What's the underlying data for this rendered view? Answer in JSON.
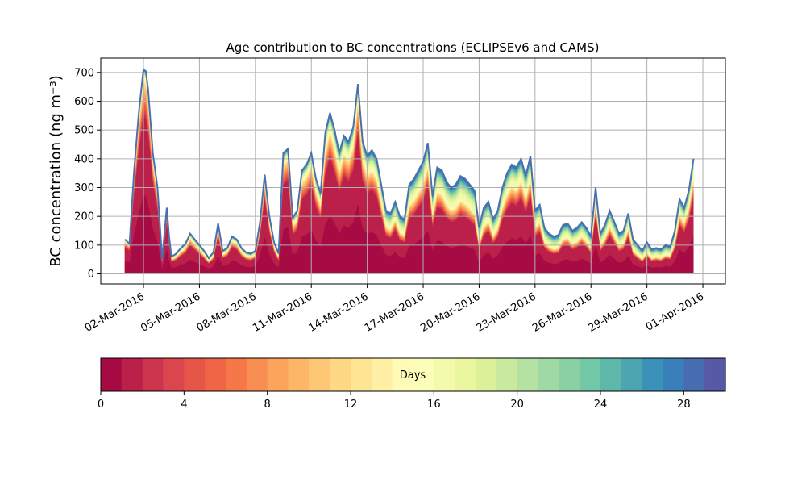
{
  "chart_data": {
    "type": "area",
    "title": "Age contribution to BC concentrations (ECLIPSEv6 and CAMS)",
    "ylabel": "BC concentration (ng m⁻³)",
    "xlabel": "",
    "ylim": [
      -35,
      750
    ],
    "x_range": [
      "2016-02-28T17:00",
      "2016-04-02T05:00"
    ],
    "y_ticks": [
      0,
      100,
      200,
      300,
      400,
      500,
      600,
      700
    ],
    "x_ticks": [
      "02-Mar-2016",
      "05-Mar-2016",
      "08-Mar-2016",
      "11-Mar-2016",
      "14-Mar-2016",
      "17-Mar-2016",
      "20-Mar-2016",
      "23-Mar-2016",
      "26-Mar-2016",
      "29-Mar-2016",
      "01-Apr-2016"
    ],
    "x_tick_dates": [
      "2016-03-02",
      "2016-03-05",
      "2016-03-08",
      "2016-03-11",
      "2016-03-14",
      "2016-03-17",
      "2016-03-20",
      "2016-03-23",
      "2016-03-26",
      "2016-03-29",
      "2016-04-01"
    ],
    "grid": true,
    "colormap": "Spectral",
    "colors": {
      "spectral": [
        "#9e0142",
        "#d53e4f",
        "#f46d43",
        "#fdae61",
        "#fee08b",
        "#ffffbf",
        "#e6f598",
        "#abdda4",
        "#66c2a5",
        "#3288bd",
        "#5e4fa2"
      ],
      "total_line": "#4c6fb0",
      "grid": "#b0b0b0"
    },
    "series": [
      {
        "dates": [
          "2016-03-01T00:00",
          "2016-03-01T06:00",
          "2016-03-01T12:00",
          "2016-03-01T18:00",
          "2016-03-02T00:00",
          "2016-03-02T03:00",
          "2016-03-02T06:00",
          "2016-03-02T12:00",
          "2016-03-02T18:00",
          "2016-03-03T00:00",
          "2016-03-03T06:00",
          "2016-03-03T09:00",
          "2016-03-03T12:00",
          "2016-03-03T18:00",
          "2016-03-04T00:00",
          "2016-03-04T06:00",
          "2016-03-04T12:00",
          "2016-03-04T18:00",
          "2016-03-05T00:00",
          "2016-03-05T06:00",
          "2016-03-05T12:00",
          "2016-03-05T18:00",
          "2016-03-06T00:00",
          "2016-03-06T06:00",
          "2016-03-06T12:00",
          "2016-03-06T18:00",
          "2016-03-07T00:00",
          "2016-03-07T06:00",
          "2016-03-07T12:00",
          "2016-03-07T18:00",
          "2016-03-08T00:00",
          "2016-03-08T06:00",
          "2016-03-08T12:00",
          "2016-03-08T18:00",
          "2016-03-09T00:00",
          "2016-03-09T06:00",
          "2016-03-09T12:00",
          "2016-03-09T18:00",
          "2016-03-10T00:00",
          "2016-03-10T06:00",
          "2016-03-10T12:00",
          "2016-03-10T18:00",
          "2016-03-11T00:00",
          "2016-03-11T06:00",
          "2016-03-11T12:00",
          "2016-03-11T18:00",
          "2016-03-12T00:00",
          "2016-03-12T06:00",
          "2016-03-12T12:00",
          "2016-03-12T18:00",
          "2016-03-13T00:00",
          "2016-03-13T06:00",
          "2016-03-13T12:00",
          "2016-03-13T18:00",
          "2016-03-14T00:00",
          "2016-03-14T06:00",
          "2016-03-14T12:00",
          "2016-03-14T18:00",
          "2016-03-15T00:00",
          "2016-03-15T06:00",
          "2016-03-15T12:00",
          "2016-03-15T18:00",
          "2016-03-16T00:00",
          "2016-03-16T06:00",
          "2016-03-16T12:00",
          "2016-03-16T18:00",
          "2016-03-17T00:00",
          "2016-03-17T06:00",
          "2016-03-17T12:00",
          "2016-03-17T18:00",
          "2016-03-18T00:00",
          "2016-03-18T06:00",
          "2016-03-18T12:00",
          "2016-03-18T18:00",
          "2016-03-19T00:00",
          "2016-03-19T06:00",
          "2016-03-19T12:00",
          "2016-03-19T18:00",
          "2016-03-20T00:00",
          "2016-03-20T06:00",
          "2016-03-20T12:00",
          "2016-03-20T18:00",
          "2016-03-21T00:00",
          "2016-03-21T06:00",
          "2016-03-21T12:00",
          "2016-03-21T18:00",
          "2016-03-22T00:00",
          "2016-03-22T06:00",
          "2016-03-22T12:00",
          "2016-03-22T18:00",
          "2016-03-23T00:00",
          "2016-03-23T06:00",
          "2016-03-23T12:00",
          "2016-03-23T18:00",
          "2016-03-24T00:00",
          "2016-03-24T06:00",
          "2016-03-24T12:00",
          "2016-03-24T18:00",
          "2016-03-25T00:00",
          "2016-03-25T06:00",
          "2016-03-25T12:00",
          "2016-03-25T18:00",
          "2016-03-26T00:00",
          "2016-03-26T06:00",
          "2016-03-26T12:00",
          "2016-03-26T18:00",
          "2016-03-27T00:00",
          "2016-03-27T06:00",
          "2016-03-27T12:00",
          "2016-03-27T18:00",
          "2016-03-28T00:00",
          "2016-03-28T06:00",
          "2016-03-28T12:00",
          "2016-03-28T18:00",
          "2016-03-29T00:00",
          "2016-03-29T06:00",
          "2016-03-29T12:00",
          "2016-03-29T18:00",
          "2016-03-30T00:00",
          "2016-03-30T06:00",
          "2016-03-30T12:00",
          "2016-03-30T18:00",
          "2016-03-31T00:00",
          "2016-03-31T06:00",
          "2016-03-31T12:00",
          "2016-03-31T18:00",
          "2016-04-01T00:00"
        ],
        "total": [
          120,
          105,
          360,
          560,
          710,
          705,
          640,
          420,
          300,
          50,
          230,
          130,
          60,
          70,
          90,
          105,
          140,
          120,
          100,
          80,
          55,
          75,
          175,
          80,
          90,
          130,
          120,
          90,
          75,
          70,
          80,
          180,
          345,
          200,
          110,
          70,
          420,
          435,
          195,
          220,
          360,
          380,
          420,
          330,
          280,
          490,
          560,
          500,
          420,
          480,
          460,
          510,
          660,
          460,
          410,
          430,
          400,
          310,
          220,
          210,
          250,
          200,
          190,
          310,
          330,
          360,
          390,
          455,
          270,
          370,
          360,
          320,
          300,
          310,
          340,
          330,
          310,
          290,
          160,
          230,
          250,
          190,
          220,
          300,
          350,
          380,
          370,
          400,
          340,
          410,
          220,
          240,
          160,
          140,
          130,
          135,
          170,
          175,
          150,
          160,
          180,
          160,
          130,
          300,
          140,
          170,
          220,
          180,
          140,
          150,
          210,
          120,
          100,
          80,
          110,
          85,
          90,
          85,
          100,
          95,
          150,
          260,
          230,
          290,
          400
        ],
        "aged_fraction": [
          0.05,
          0.05,
          0.05,
          0.05,
          0.04,
          0.04,
          0.05,
          0.06,
          0.07,
          0.1,
          0.06,
          0.1,
          0.15,
          0.15,
          0.15,
          0.14,
          0.12,
          0.14,
          0.15,
          0.18,
          0.2,
          0.17,
          0.1,
          0.16,
          0.15,
          0.12,
          0.13,
          0.16,
          0.18,
          0.18,
          0.17,
          0.1,
          0.07,
          0.12,
          0.16,
          0.2,
          0.08,
          0.07,
          0.14,
          0.13,
          0.1,
          0.1,
          0.09,
          0.12,
          0.14,
          0.12,
          0.1,
          0.12,
          0.15,
          0.12,
          0.13,
          0.12,
          0.08,
          0.13,
          0.15,
          0.15,
          0.16,
          0.2,
          0.25,
          0.26,
          0.24,
          0.27,
          0.28,
          0.22,
          0.22,
          0.2,
          0.19,
          0.17,
          0.24,
          0.22,
          0.22,
          0.24,
          0.25,
          0.25,
          0.24,
          0.25,
          0.26,
          0.27,
          0.35,
          0.28,
          0.26,
          0.3,
          0.27,
          0.22,
          0.2,
          0.19,
          0.2,
          0.18,
          0.22,
          0.18,
          0.26,
          0.25,
          0.3,
          0.32,
          0.33,
          0.33,
          0.28,
          0.28,
          0.3,
          0.29,
          0.27,
          0.29,
          0.32,
          0.18,
          0.3,
          0.27,
          0.24,
          0.27,
          0.3,
          0.29,
          0.25,
          0.32,
          0.34,
          0.36,
          0.33,
          0.36,
          0.35,
          0.36,
          0.34,
          0.34,
          0.28,
          0.2,
          0.22,
          0.2,
          0.16
        ]
      }
    ],
    "colorbar": {
      "label": "Days",
      "min": 0,
      "max": 30,
      "ticks": [
        0,
        4,
        8,
        12,
        16,
        20,
        24,
        28
      ],
      "levels": 30
    }
  }
}
